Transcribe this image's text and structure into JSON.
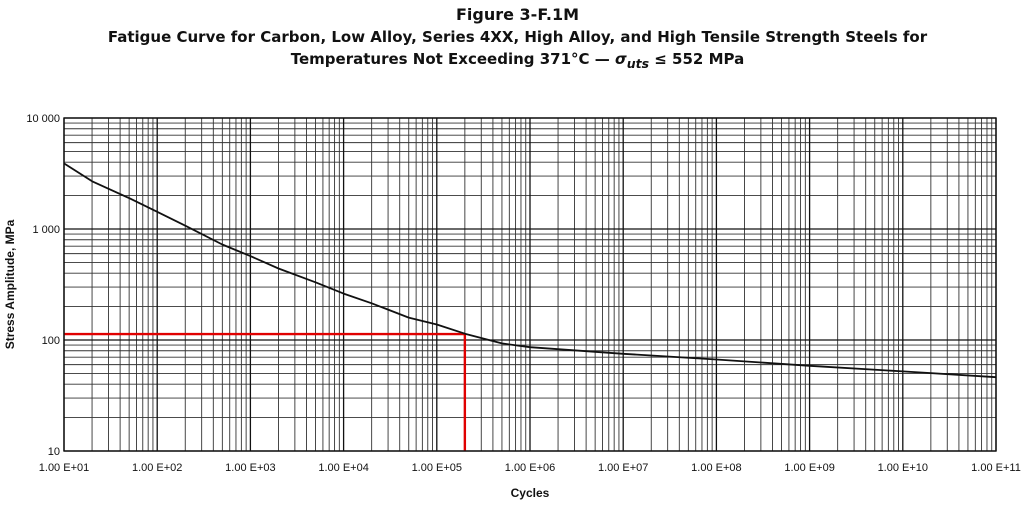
{
  "header": {
    "figure_title": "Figure 3-F.1M",
    "subtitle_line1": "Fatigue Curve for Carbon, Low Alloy, Series 4XX, High Alloy, and High Tensile Strength Steels for",
    "subtitle_line2_pre": "Temperatures Not Exceeding 371°C — ",
    "subtitle_symbol": "σ",
    "subtitle_subscript": "uts",
    "subtitle_line2_post": " ≤ 552 MPa"
  },
  "chart_data": {
    "type": "line",
    "title": "Figure 3-F.1M",
    "xlabel": "Cycles",
    "ylabel": "Stress Amplitude, MPa",
    "x_scale": "log",
    "y_scale": "log",
    "xlim": [
      10,
      100000000000
    ],
    "ylim": [
      10,
      10000
    ],
    "grid": true,
    "x_ticks": [
      10,
      100,
      1000,
      10000,
      100000,
      1000000,
      10000000,
      100000000,
      1000000000,
      10000000000,
      100000000000
    ],
    "x_tick_labels": [
      "1.00 E+01",
      "1.00 E+02",
      "1.00 E+03",
      "1.00 E+04",
      "1.00 E+05",
      "1.00 E+06",
      "1.00 E+07",
      "1.00 E+08",
      "1.00 E+09",
      "1.00 E+10",
      "1.00 E+11"
    ],
    "y_ticks": [
      10,
      100,
      1000,
      10000
    ],
    "y_tick_labels": [
      "10",
      "100",
      "1 000",
      "10 000"
    ],
    "series": [
      {
        "color": "#111111",
        "x": [
          10,
          20,
          50,
          100,
          200,
          500,
          1000,
          2000,
          5000,
          10000,
          20000,
          50000,
          100000,
          200000,
          500000,
          1000000,
          10000000,
          100000000,
          1000000000,
          10000000000,
          100000000000
        ],
        "y": [
          3900,
          2690,
          1900,
          1430,
          1070,
          725,
          570,
          441,
          331,
          262,
          214,
          159,
          138,
          114,
          93.1,
          86.2,
          75.1,
          66.7,
          58.6,
          52.1,
          46.2
        ]
      }
    ],
    "annotations": [
      {
        "kind": "crosshair",
        "color": "#e00000",
        "x": 200000,
        "y": 113
      }
    ]
  }
}
